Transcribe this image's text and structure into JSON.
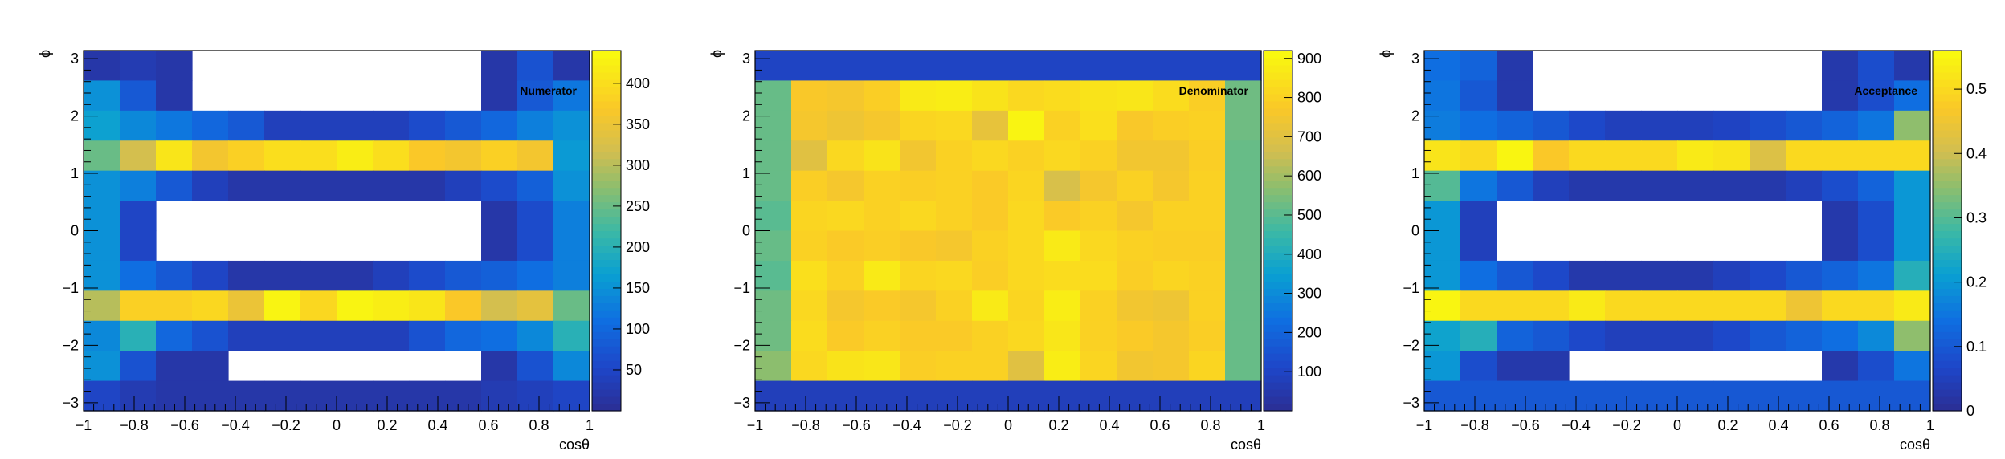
{
  "figure": {
    "background": "#ffffff"
  },
  "chart_data": [
    {
      "type": "heatmap",
      "title": "Numerator",
      "xlabel": "cosθ",
      "ylabel": "ϕ",
      "xlim": [
        -1,
        1
      ],
      "ylim": [
        -3.14159,
        3.14159
      ],
      "xticks": [
        "−1",
        "−0.8",
        "−0.6",
        "−0.4",
        "−0.2",
        "0",
        "0.2",
        "0.4",
        "0.6",
        "0.8",
        "1"
      ],
      "yticks": [
        "−3",
        "−2",
        "−1",
        "0",
        "1",
        "2",
        "3"
      ],
      "zmax": 440,
      "zticks": [
        "50",
        "100",
        "150",
        "200",
        "250",
        "300",
        "350",
        "400"
      ],
      "nx": 14,
      "ny": 12,
      "rows_top_to_bottom": [
        [
          20,
          30,
          20,
          0,
          0,
          0,
          0,
          0,
          0,
          0,
          0,
          20,
          70,
          20
        ],
        [
          150,
          80,
          20,
          0,
          0,
          0,
          0,
          0,
          0,
          0,
          0,
          20,
          80,
          120
        ],
        [
          170,
          140,
          120,
          100,
          80,
          40,
          40,
          40,
          40,
          60,
          80,
          100,
          130,
          150
        ],
        [
          250,
          320,
          410,
          360,
          380,
          400,
          400,
          420,
          400,
          370,
          360,
          380,
          360,
          160
        ],
        [
          150,
          130,
          80,
          40,
          20,
          20,
          20,
          20,
          20,
          20,
          40,
          60,
          90,
          150
        ],
        [
          150,
          50,
          0,
          0,
          0,
          0,
          0,
          0,
          0,
          0,
          0,
          20,
          60,
          130
        ],
        [
          150,
          50,
          0,
          0,
          0,
          0,
          0,
          0,
          0,
          0,
          0,
          20,
          60,
          130
        ],
        [
          150,
          110,
          80,
          50,
          20,
          20,
          20,
          20,
          40,
          60,
          80,
          90,
          110,
          130
        ],
        [
          300,
          380,
          380,
          390,
          350,
          430,
          390,
          430,
          420,
          410,
          370,
          320,
          340,
          250
        ],
        [
          140,
          200,
          100,
          70,
          40,
          40,
          40,
          40,
          40,
          70,
          100,
          110,
          140,
          200
        ],
        [
          150,
          70,
          20,
          20,
          0,
          0,
          0,
          0,
          0,
          0,
          0,
          20,
          70,
          140
        ],
        [
          50,
          30,
          20,
          20,
          20,
          20,
          20,
          20,
          20,
          20,
          20,
          30,
          40,
          50
        ]
      ]
    },
    {
      "type": "heatmap",
      "title": "Denominator",
      "xlabel": "cosθ",
      "ylabel": "ϕ",
      "xlim": [
        -1,
        1
      ],
      "ylim": [
        -3.14159,
        3.14159
      ],
      "xticks": [
        "−1",
        "−0.8",
        "−0.6",
        "−0.4",
        "−0.2",
        "0",
        "0.2",
        "0.4",
        "0.6",
        "0.8",
        "1"
      ],
      "yticks": [
        "−3",
        "−2",
        "−1",
        "0",
        "1",
        "2",
        "3"
      ],
      "zmax": 920,
      "zticks": [
        "100",
        "200",
        "300",
        "400",
        "500",
        "600",
        "700",
        "800",
        "900"
      ],
      "nx": 14,
      "ny": 12,
      "rows_top_to_bottom": [
        [
          100,
          100,
          100,
          100,
          100,
          100,
          100,
          100,
          100,
          100,
          100,
          100,
          100,
          100
        ],
        [
          520,
          770,
          760,
          790,
          870,
          880,
          850,
          820,
          830,
          850,
          860,
          830,
          790,
          530
        ],
        [
          520,
          760,
          740,
          760,
          810,
          820,
          720,
          900,
          800,
          840,
          770,
          790,
          800,
          530
        ],
        [
          520,
          700,
          820,
          850,
          750,
          800,
          820,
          800,
          820,
          800,
          750,
          750,
          790,
          520
        ],
        [
          520,
          790,
          760,
          800,
          790,
          800,
          780,
          810,
          680,
          760,
          800,
          760,
          800,
          520
        ],
        [
          500,
          810,
          820,
          800,
          820,
          800,
          780,
          820,
          780,
          800,
          760,
          800,
          800,
          520
        ],
        [
          520,
          800,
          780,
          790,
          770,
          760,
          800,
          820,
          870,
          820,
          800,
          790,
          790,
          520
        ],
        [
          500,
          840,
          800,
          870,
          810,
          820,
          790,
          820,
          830,
          830,
          790,
          810,
          800,
          520
        ],
        [
          530,
          820,
          760,
          780,
          760,
          800,
          870,
          810,
          880,
          800,
          750,
          740,
          800,
          520
        ],
        [
          530,
          830,
          780,
          800,
          780,
          780,
          800,
          820,
          860,
          800,
          780,
          760,
          790,
          520
        ],
        [
          570,
          820,
          850,
          860,
          790,
          800,
          800,
          700,
          880,
          810,
          750,
          760,
          810,
          520
        ],
        [
          80,
          80,
          80,
          80,
          80,
          80,
          80,
          80,
          80,
          80,
          80,
          80,
          80,
          80
        ]
      ]
    },
    {
      "type": "heatmap",
      "title": "Acceptance",
      "xlabel": "cosθ",
      "ylabel": "ϕ",
      "xlim": [
        -1,
        1
      ],
      "ylim": [
        -3.14159,
        3.14159
      ],
      "xticks": [
        "−1",
        "−0.8",
        "−0.6",
        "−0.4",
        "−0.2",
        "0",
        "0.2",
        "0.4",
        "0.6",
        "0.8",
        "1"
      ],
      "yticks": [
        "−3",
        "−2",
        "−1",
        "0",
        "1",
        "2",
        "3"
      ],
      "zmax": 0.56,
      "zticks": [
        "0",
        "0.1",
        "0.2",
        "0.3",
        "0.4",
        "0.5"
      ],
      "nx": 14,
      "ny": 12,
      "rows_top_to_bottom": [
        [
          0.14,
          0.12,
          0.03,
          0,
          0,
          0,
          0,
          0,
          0,
          0,
          0,
          0.03,
          0.08,
          0.03
        ],
        [
          0.15,
          0.1,
          0.03,
          0,
          0,
          0,
          0,
          0,
          0,
          0,
          0,
          0.03,
          0.08,
          0.14
        ],
        [
          0.16,
          0.14,
          0.12,
          0.1,
          0.07,
          0.05,
          0.05,
          0.05,
          0.06,
          0.08,
          0.1,
          0.12,
          0.15,
          0.35
        ],
        [
          0.52,
          0.5,
          0.55,
          0.47,
          0.5,
          0.5,
          0.5,
          0.53,
          0.52,
          0.42,
          0.5,
          0.5,
          0.5,
          0.5
        ],
        [
          0.3,
          0.15,
          0.1,
          0.05,
          0.03,
          0.03,
          0.03,
          0.03,
          0.03,
          0.03,
          0.05,
          0.08,
          0.12,
          0.2
        ],
        [
          0.2,
          0.05,
          0,
          0,
          0,
          0,
          0,
          0,
          0,
          0,
          0,
          0.03,
          0.08,
          0.2
        ],
        [
          0.2,
          0.05,
          0,
          0,
          0,
          0,
          0,
          0,
          0,
          0,
          0,
          0.03,
          0.08,
          0.2
        ],
        [
          0.2,
          0.14,
          0.1,
          0.07,
          0.03,
          0.03,
          0.03,
          0.03,
          0.05,
          0.07,
          0.1,
          0.12,
          0.15,
          0.25
        ],
        [
          0.55,
          0.5,
          0.5,
          0.5,
          0.53,
          0.5,
          0.5,
          0.5,
          0.5,
          0.5,
          0.45,
          0.5,
          0.5,
          0.53
        ],
        [
          0.22,
          0.25,
          0.12,
          0.1,
          0.07,
          0.05,
          0.05,
          0.05,
          0.07,
          0.1,
          0.12,
          0.14,
          0.18,
          0.35
        ],
        [
          0.2,
          0.08,
          0.03,
          0.03,
          0,
          0,
          0,
          0,
          0,
          0,
          0,
          0.03,
          0.08,
          0.15
        ],
        [
          0.1,
          0.1,
          0.1,
          0.1,
          0.1,
          0.1,
          0.1,
          0.1,
          0.1,
          0.1,
          0.1,
          0.1,
          0.1,
          0.1
        ]
      ]
    }
  ]
}
